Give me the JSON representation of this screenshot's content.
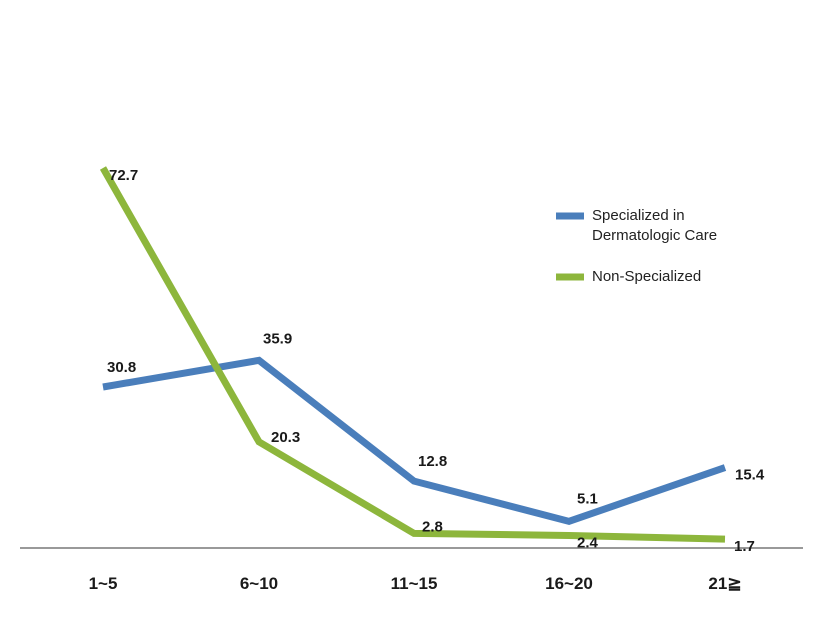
{
  "chart_data": {
    "type": "line",
    "categories": [
      "1~5",
      "6~10",
      "11~15",
      "16~20",
      "21≧"
    ],
    "series": [
      {
        "name": "Specialized in Dermatologic Care",
        "name_lines": [
          "Specialized in",
          "Dermatologic Care"
        ],
        "color": "#4a7ebb",
        "values": [
          30.8,
          35.9,
          12.8,
          5.1,
          15.4
        ]
      },
      {
        "name": "Non-Specialized",
        "name_lines": [
          "Non-Specialized"
        ],
        "color": "#8db63c",
        "values": [
          72.7,
          20.3,
          2.8,
          2.4,
          1.7
        ]
      }
    ],
    "ylim": [
      0,
      80
    ],
    "grid": false,
    "legend_position": "top-right",
    "axis_color": "#999999"
  }
}
